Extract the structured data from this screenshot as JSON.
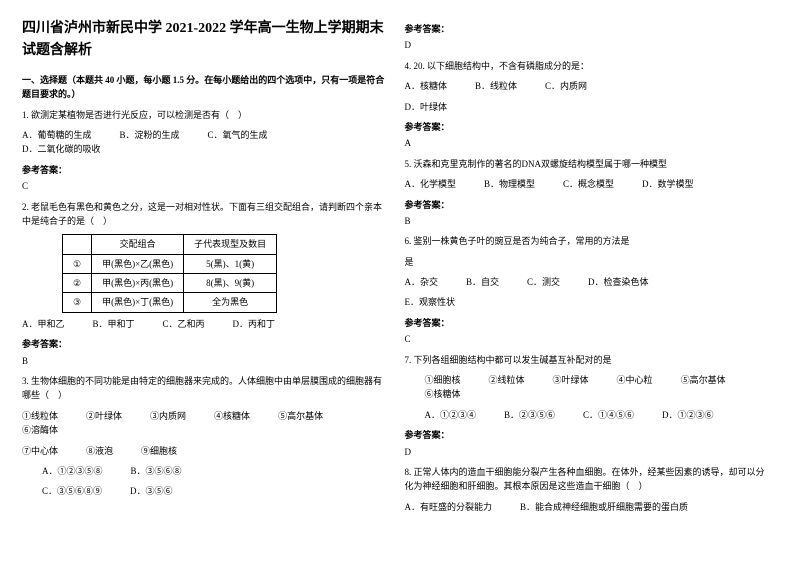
{
  "title": "四川省泸州市新民中学 2021-2022 学年高一生物上学期期末试题含解析",
  "section1": "一、选择题（本题共 40 小题，每小题 1.5 分。在每小题给出的四个选项中，只有一项是符合题目要求的。）",
  "q1": {
    "stem": "1. 欲测定某植物是否进行光反应，可以检测是否有（　）",
    "a": "A．葡萄糖的生成",
    "b": "B．淀粉的生成",
    "c": "C．氧气的生成",
    "d": "D．二氧化碳的吸收",
    "ans_label": "参考答案：",
    "ans": "C"
  },
  "q2": {
    "stem": "2. 老鼠毛色有黑色和黄色之分，这是一对相对性状。下面有三组交配组合，请判断四个亲本中是纯合子的是（　）",
    "table": {
      "h1": "交配组合",
      "h2": "子代表现型及数目",
      "r1c0": "①",
      "r1c1": "甲(黑色)×乙(黑色)",
      "r1c2": "5(黑)、1(黄)",
      "r2c0": "②",
      "r2c1": "甲(黑色)×丙(黑色)",
      "r2c2": "8(黑)、9(黄)",
      "r3c0": "③",
      "r3c1": "甲(黑色)×丁(黑色)",
      "r3c2": "全为黑色"
    },
    "a": "A．甲和乙",
    "b": "B．甲和丁",
    "c": "C．乙和丙",
    "d": "D．丙和丁",
    "ans_label": "参考答案：",
    "ans": "B"
  },
  "q3": {
    "stem": "3. 生物体细胞的不同功能是由特定的细胞器来完成的。人体细胞中由单层膜围成的细胞器有哪些（　）",
    "o1": "①线粒体",
    "o2": "②叶绿体",
    "o3": "③内质网",
    "o4": "④核糖体",
    "o5": "⑤高尔基体",
    "o6": "⑥溶酶体",
    "o7": "⑦中心体",
    "o8": "⑧液泡",
    "o9": "⑨细胞核",
    "a": "A．①②③⑤⑧",
    "b": "B．③⑤⑥⑧",
    "c": "C．③⑤⑥⑧⑨",
    "d": "D．③⑤⑥",
    "ans_label": "参考答案：",
    "ans": "D"
  },
  "q4": {
    "stem": "4. 20. 以下细胞结构中，不含有磷脂成分的是：",
    "a": "A．核糖体",
    "b": "B．线粒体",
    "c": "C．内质网",
    "d": "D．叶绿体",
    "ans_label": "参考答案：",
    "ans": "A"
  },
  "q5": {
    "stem": "5. 沃森和克里克制作的著名的DNA双螺旋结构模型属于哪一种模型",
    "a": "A．化学模型",
    "b": "B．物理模型",
    "c": "C．概念模型",
    "d": "D．数学模型",
    "ans_label": "参考答案：",
    "ans": "B"
  },
  "q6": {
    "stem": "6. 鉴别一株黄色子叶的豌豆是否为纯合子，常用的方法是",
    "a": "A．杂交",
    "b": "B．自交",
    "c": "C．测交",
    "d": "D．检查染色体",
    "e": "E．观察性状",
    "ans_label": "参考答案：",
    "ans": "C"
  },
  "q7": {
    "stem": "7. 下列各组细胞结构中都可以发生碱基互补配对的是",
    "o1": "①细胞核",
    "o2": "②线粒体",
    "o3": "③叶绿体",
    "o4": "④中心粒",
    "o5": "⑤高尔基体",
    "o6": "⑥核糖体",
    "a": "A．①②③④",
    "b": "B．②③⑤⑥",
    "c": "C．①④⑤⑥",
    "d": "D．①②③⑥",
    "ans_label": "参考答案：",
    "ans": "D"
  },
  "q8": {
    "stem": "8. 正常人体内的造血干细胞能分裂产生各种血细胞。在体外，经某些因素的诱导，却可以分化为神经细胞和肝细胞。其根本原因是这些造血干细胞（　）",
    "a": "A．有旺盛的分裂能力",
    "b": "B．能合成神经细胞或肝细胞需要的蛋白质"
  }
}
